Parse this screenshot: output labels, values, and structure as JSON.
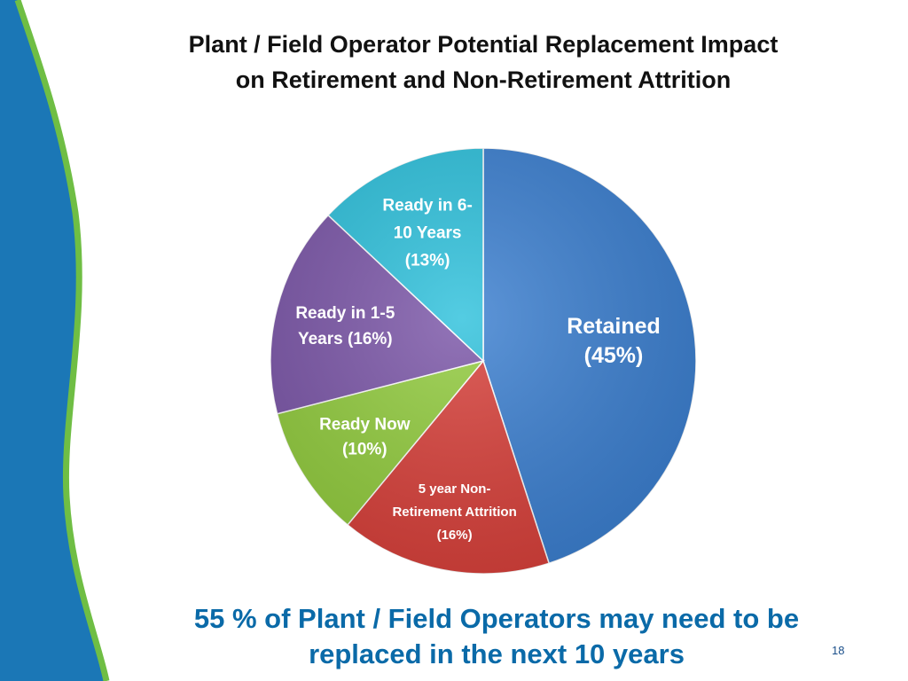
{
  "title": {
    "line1": "Plant / Field Operator Potential Replacement Impact",
    "line2": "on Retirement and Non-Retirement Attrition"
  },
  "footer": {
    "line1": "55 % of Plant / Field Operators may need to be",
    "line2": "replaced in the next 10 years"
  },
  "page_number": "18",
  "chart_data": {
    "type": "pie",
    "slices": [
      {
        "label_lines": [
          "Retained",
          "(45%)"
        ],
        "value": 45,
        "color": "#3b7fd0",
        "label_color": "#ffffff"
      },
      {
        "label_lines": [
          "5 year Non-",
          "Retirement Attrition",
          "(16%)"
        ],
        "value": 16,
        "color": "#d8403a",
        "label_color": "#ffffff"
      },
      {
        "label_lines": [
          "Ready Now",
          "(10%)"
        ],
        "value": 10,
        "color": "#92cc3e",
        "label_color": "#ffffff"
      },
      {
        "label_lines": [
          "Ready in 1-5",
          "Years (16%)"
        ],
        "value": 16,
        "color": "#7b56a8",
        "label_color": "#ffffff"
      },
      {
        "label_lines": [
          "Ready in 6-",
          "10 Years",
          "(13%)"
        ],
        "value": 13,
        "color": "#2ec1dc",
        "label_color": "#ffffff"
      }
    ]
  }
}
